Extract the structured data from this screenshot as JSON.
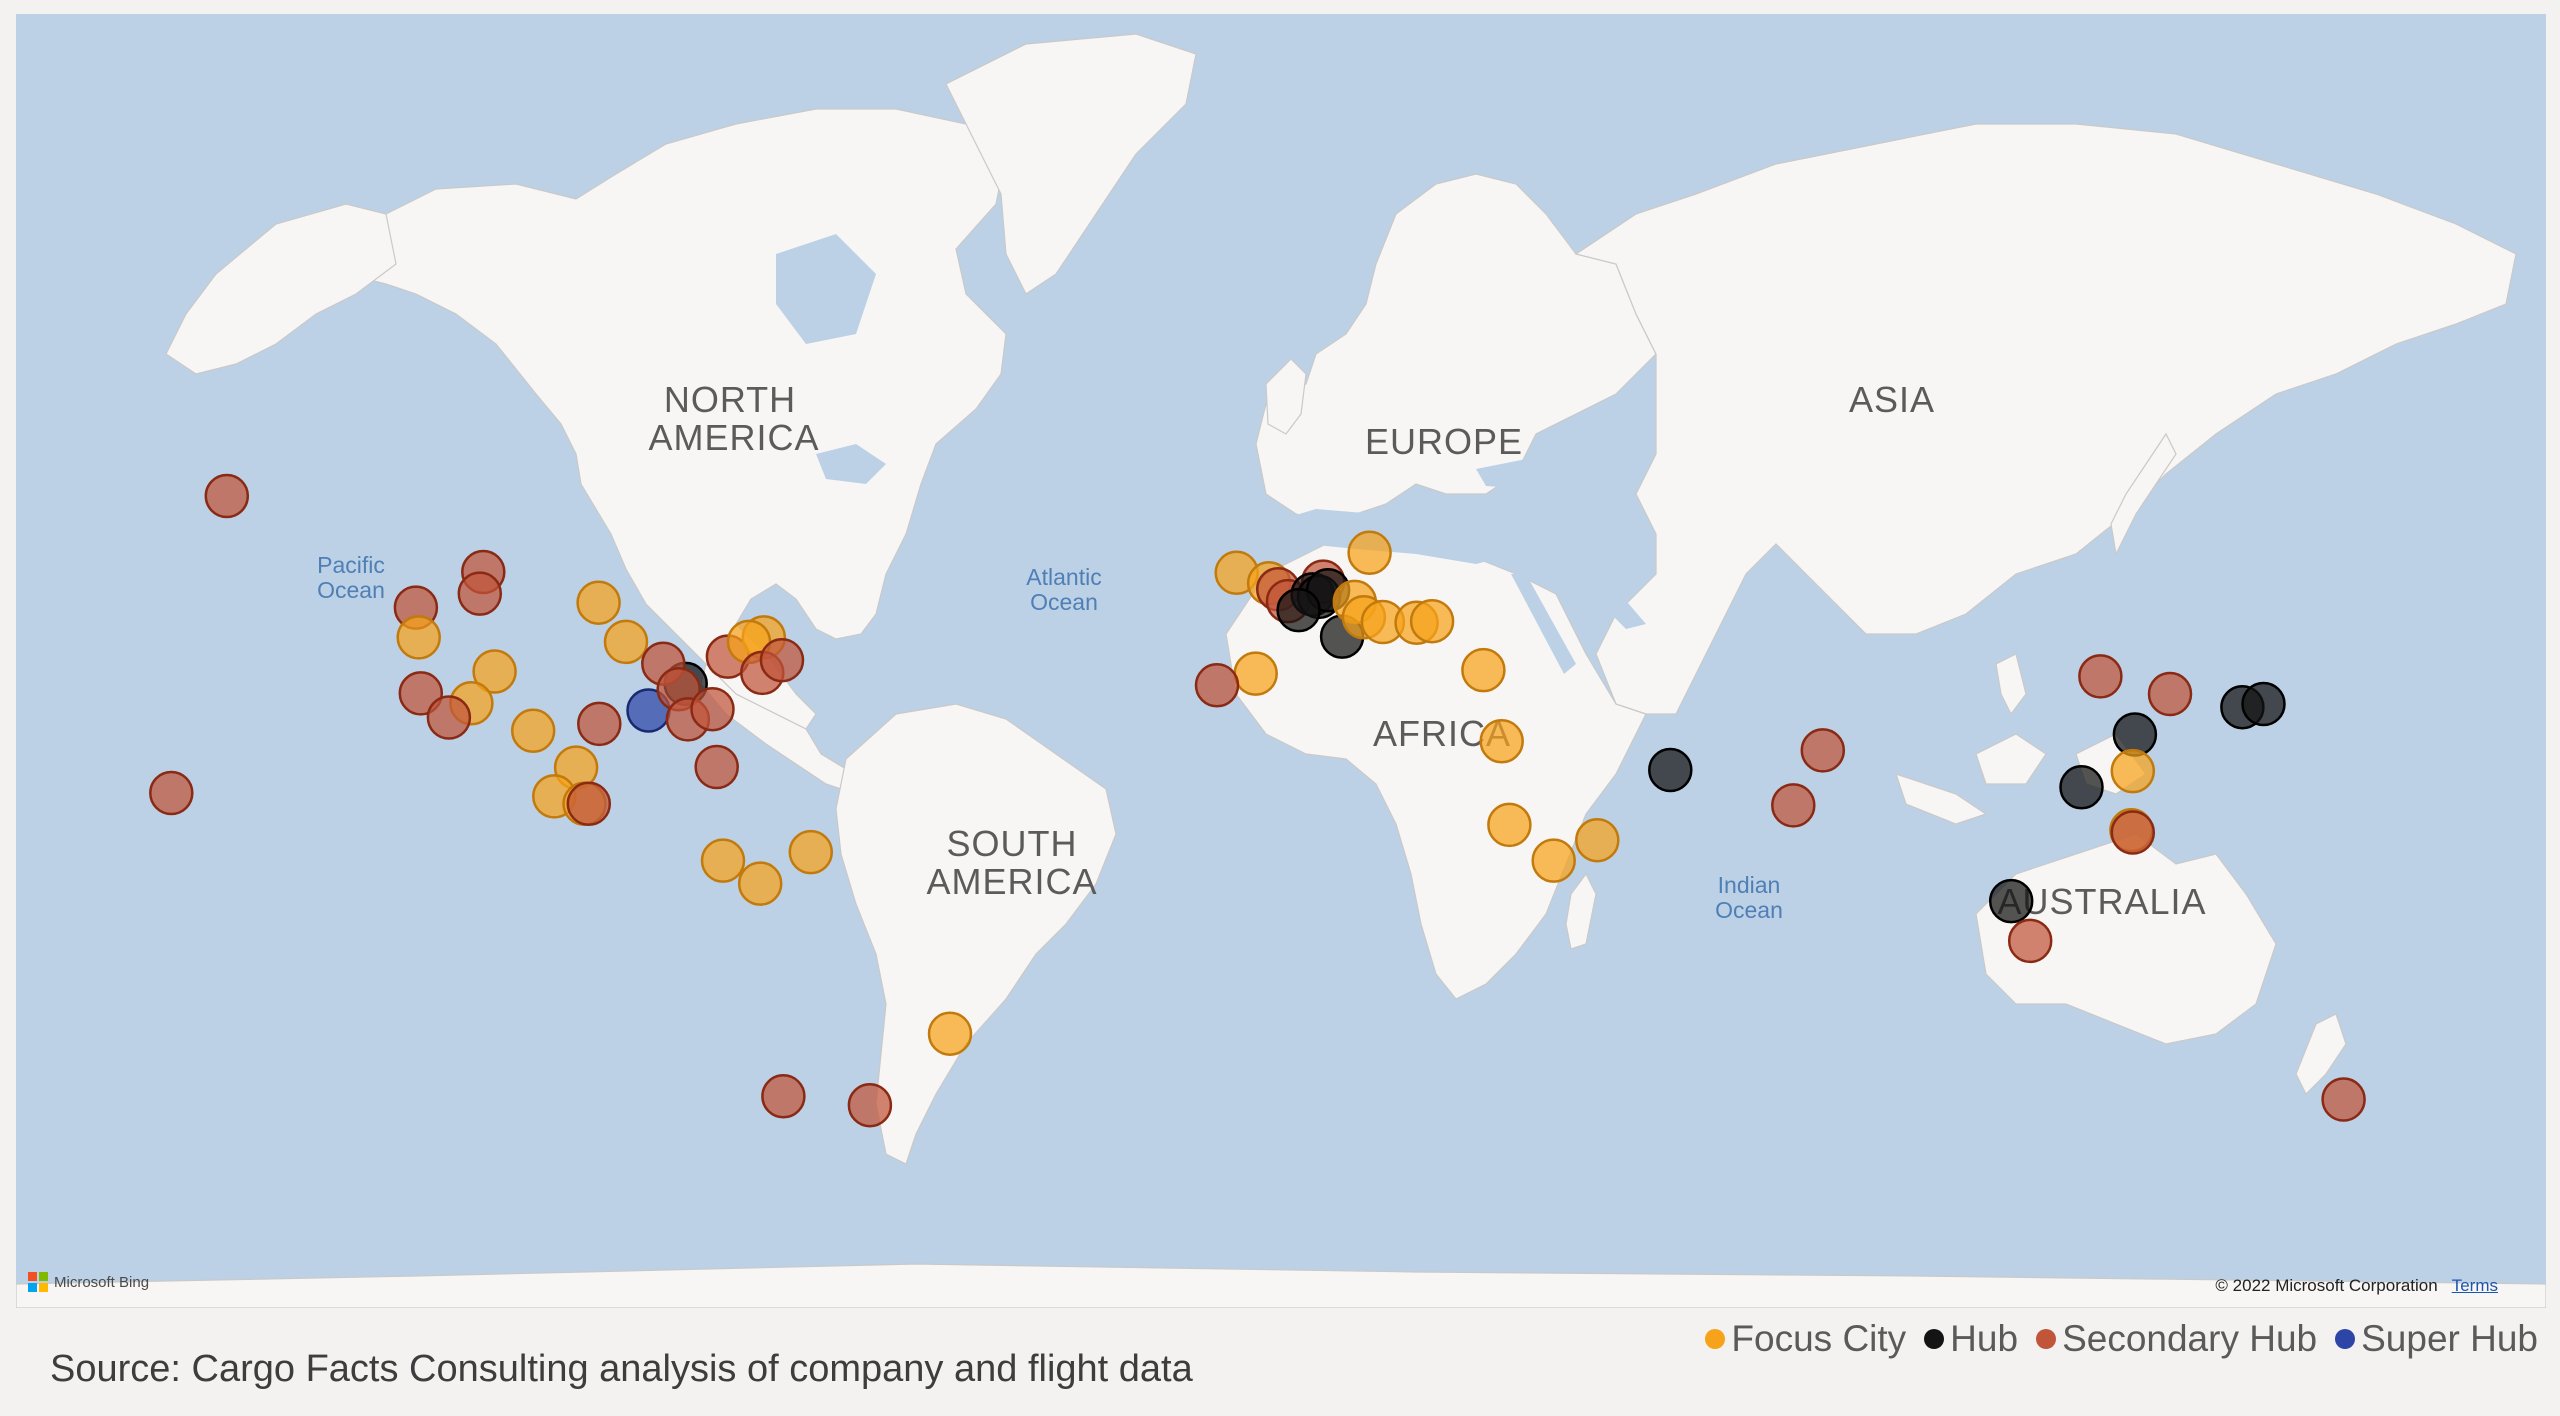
{
  "map": {
    "continent_labels": {
      "north_america_1": "NORTH",
      "north_america_2": "AMERICA",
      "south_america_1": "SOUTH",
      "south_america_2": "AMERICA",
      "europe": "EUROPE",
      "africa": "AFRICA",
      "asia": "ASIA",
      "australia": "AUSTRALIA"
    },
    "ocean_labels": {
      "pacific_1": "Pacific",
      "pacific_2": "Ocean",
      "atlantic_1": "Atlantic",
      "atlantic_2": "Ocean",
      "indian_1": "Indian",
      "indian_2": "Ocean"
    },
    "attribution": {
      "provider": "Microsoft Bing",
      "copyright": "© 2022 Microsoft Corporation",
      "terms": "Terms"
    },
    "colors": {
      "water": "#bcd1e6",
      "land": "#f7f6f4"
    }
  },
  "categories": {
    "Focus City": {
      "color": "#f7a21b",
      "stroke": "#c27a0c"
    },
    "Hub": {
      "color": "#141414",
      "stroke": "#000000"
    },
    "Secondary Hub": {
      "color": "#c0553a",
      "stroke": "#8a2a14"
    },
    "Super Hub": {
      "color": "#2e45a8",
      "stroke": "#1a2a70"
    }
  },
  "legend": {
    "items": [
      "Focus City",
      "Hub",
      "Secondary Hub",
      "Super Hub"
    ]
  },
  "source": "Source: Cargo Facts Consulting analysis of company and flight data",
  "locations": [
    {
      "type": "Secondary Hub",
      "lat": 61.2,
      "lon": -150.0
    },
    {
      "type": "Secondary Hub",
      "lat": 21.3,
      "lon": -157.9
    },
    {
      "type": "Secondary Hub",
      "lat": 49.3,
      "lon": -123.1
    },
    {
      "type": "Secondary Hub",
      "lat": 53.5,
      "lon": -113.5
    },
    {
      "type": "Secondary Hub",
      "lat": 51.0,
      "lon": -114.0
    },
    {
      "type": "Focus City",
      "lat": 45.5,
      "lon": -122.7
    },
    {
      "type": "Focus City",
      "lat": 49.9,
      "lon": -97.1
    },
    {
      "type": "Focus City",
      "lat": 44.9,
      "lon": -93.2
    },
    {
      "type": "Focus City",
      "lat": 40.8,
      "lon": -111.9
    },
    {
      "type": "Secondary Hub",
      "lat": 37.6,
      "lon": -122.4
    },
    {
      "type": "Focus City",
      "lat": 36.1,
      "lon": -115.2
    },
    {
      "type": "Secondary Hub",
      "lat": 33.9,
      "lon": -118.4
    },
    {
      "type": "Focus City",
      "lat": 31.8,
      "lon": -106.4
    },
    {
      "type": "Secondary Hub",
      "lat": 32.9,
      "lon": -97.0
    },
    {
      "type": "Super Hub",
      "lat": 35.0,
      "lon": -90.0
    },
    {
      "type": "Hub",
      "lat": 39.0,
      "lon": -84.7
    },
    {
      "type": "Secondary Hub",
      "lat": 41.9,
      "lon": -87.9
    },
    {
      "type": "Secondary Hub",
      "lat": 38.2,
      "lon": -85.7
    },
    {
      "type": "Secondary Hub",
      "lat": 33.6,
      "lon": -84.4
    },
    {
      "type": "Secondary Hub",
      "lat": 35.2,
      "lon": -80.9
    },
    {
      "type": "Secondary Hub",
      "lat": 42.9,
      "lon": -78.7
    },
    {
      "type": "Focus City",
      "lat": 45.5,
      "lon": -73.6
    },
    {
      "type": "Focus City",
      "lat": 44.9,
      "lon": -75.7
    },
    {
      "type": "Secondary Hub",
      "lat": 40.6,
      "lon": -73.8
    },
    {
      "type": "Secondary Hub",
      "lat": 42.4,
      "lon": -71.0
    },
    {
      "type": "Secondary Hub",
      "lat": 25.8,
      "lon": -80.3
    },
    {
      "type": "Focus City",
      "lat": 25.7,
      "lon": -100.3
    },
    {
      "type": "Focus City",
      "lat": 20.7,
      "lon": -103.4
    },
    {
      "type": "Focus City",
      "lat": 19.4,
      "lon": -99.1
    },
    {
      "type": "Secondary Hub",
      "lat": 19.4,
      "lon": -98.5
    },
    {
      "type": "Focus City",
      "lat": 9.0,
      "lon": -79.4
    },
    {
      "type": "Focus City",
      "lat": 4.7,
      "lon": -74.1
    },
    {
      "type": "Focus City",
      "lat": 10.6,
      "lon": -66.9
    },
    {
      "type": "Focus City",
      "lat": -23.0,
      "lon": -47.1
    },
    {
      "type": "Secondary Hub",
      "lat": -33.4,
      "lon": -70.8
    },
    {
      "type": "Secondary Hub",
      "lat": -34.8,
      "lon": -58.5
    },
    {
      "type": "Focus City",
      "lat": 53.4,
      "lon": -6.3
    },
    {
      "type": "Focus City",
      "lat": 52.2,
      "lon": -1.7
    },
    {
      "type": "Secondary Hub",
      "lat": 51.5,
      "lon": -0.4
    },
    {
      "type": "Secondary Hub",
      "lat": 50.1,
      "lon": 1.0
    },
    {
      "type": "Secondary Hub",
      "lat": 52.4,
      "lon": 6.0
    },
    {
      "type": "Hub",
      "lat": 50.9,
      "lon": 4.5
    },
    {
      "type": "Hub",
      "lat": 50.6,
      "lon": 5.4
    },
    {
      "type": "Hub",
      "lat": 51.4,
      "lon": 6.7
    },
    {
      "type": "Hub",
      "lat": 49.0,
      "lon": 2.5
    },
    {
      "type": "Hub",
      "lat": 45.6,
      "lon": 8.7
    },
    {
      "type": "Focus City",
      "lat": 55.6,
      "lon": 12.6
    },
    {
      "type": "Focus City",
      "lat": 50.0,
      "lon": 10.5
    },
    {
      "type": "Focus City",
      "lat": 48.1,
      "lon": 11.8
    },
    {
      "type": "Focus City",
      "lat": 47.5,
      "lon": 14.5
    },
    {
      "type": "Focus City",
      "lat": 47.4,
      "lon": 19.3
    },
    {
      "type": "Focus City",
      "lat": 47.6,
      "lon": 21.5
    },
    {
      "type": "Focus City",
      "lat": 40.5,
      "lon": -3.6
    },
    {
      "type": "Secondary Hub",
      "lat": 38.8,
      "lon": -9.1
    },
    {
      "type": "Focus City",
      "lat": 41.0,
      "lon": 28.8
    },
    {
      "type": "Focus City",
      "lat": 30.1,
      "lon": 31.4
    },
    {
      "type": "Focus City",
      "lat": 15.6,
      "lon": 32.5
    },
    {
      "type": "Focus City",
      "lat": 9.0,
      "lon": 38.8
    },
    {
      "type": "Focus City",
      "lat": 12.8,
      "lon": 45.0
    },
    {
      "type": "Hub",
      "lat": 25.3,
      "lon": 55.4
    },
    {
      "type": "Secondary Hub",
      "lat": 28.6,
      "lon": 77.1
    },
    {
      "type": "Secondary Hub",
      "lat": 19.1,
      "lon": 72.9
    },
    {
      "type": "Secondary Hub",
      "lat": 40.1,
      "lon": 116.6
    },
    {
      "type": "Secondary Hub",
      "lat": 37.5,
      "lon": 126.5
    },
    {
      "type": "Hub",
      "lat": 31.2,
      "lon": 121.5
    },
    {
      "type": "Hub",
      "lat": 35.5,
      "lon": 136.8
    },
    {
      "type": "Hub",
      "lat": 36.0,
      "lon": 139.8
    },
    {
      "type": "Hub",
      "lat": 22.3,
      "lon": 113.9
    },
    {
      "type": "Focus City",
      "lat": 25.1,
      "lon": 121.2
    },
    {
      "type": "Focus City",
      "lat": 14.6,
      "lon": 121.0
    },
    {
      "type": "Secondary Hub",
      "lat": 14.2,
      "lon": 121.2
    },
    {
      "type": "Hub",
      "lat": 1.4,
      "lon": 103.9
    },
    {
      "type": "Secondary Hub",
      "lat": -6.1,
      "lon": 106.6
    },
    {
      "type": "Secondary Hub",
      "lat": -33.9,
      "lon": 151.2
    }
  ]
}
